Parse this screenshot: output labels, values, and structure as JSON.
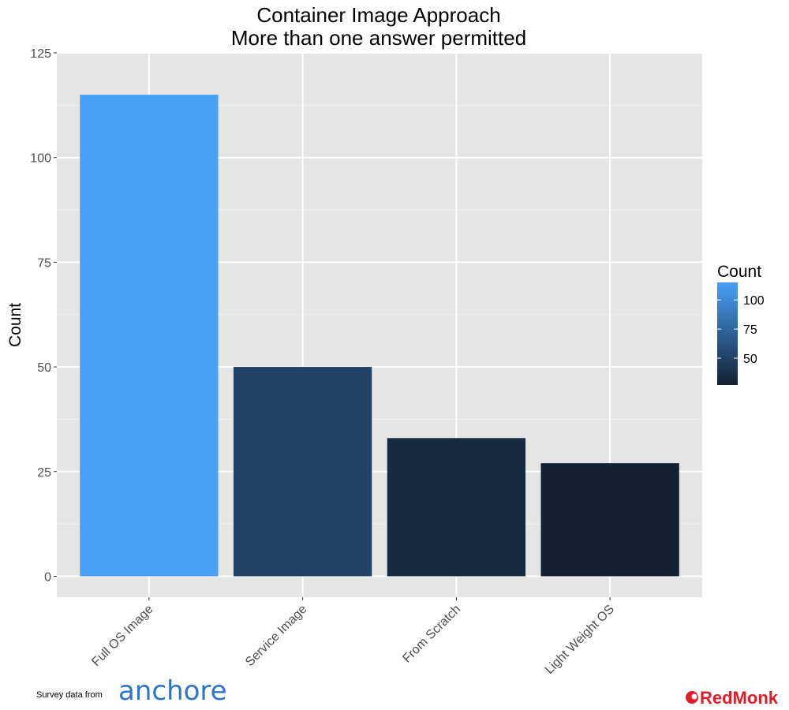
{
  "chart_data": {
    "type": "bar",
    "title": [
      "Container Image Approach",
      "More than one answer permitted"
    ],
    "xlabel": "",
    "ylabel": "Count",
    "categories": [
      "Full OS Image",
      "Service Image",
      "From Scratch",
      "Light Weight OS"
    ],
    "values": [
      115,
      50,
      33,
      27
    ],
    "ylim": [
      -5,
      125
    ],
    "yticks": [
      0,
      25,
      50,
      75,
      100,
      125
    ],
    "grid": true,
    "legend": {
      "title": "Count",
      "placement": "right",
      "type": "color-gradient",
      "ticks": [
        50,
        75,
        100
      ],
      "min": 27,
      "max": 115,
      "color_low": "#132132",
      "color_high": "#489ff8"
    },
    "colors": {
      "panel_background": "#e5e5e5",
      "grid": "#ffffff"
    }
  },
  "footer": {
    "credit_text": "Survey data from",
    "source_logo": "anchore",
    "brand_logo": "RedMonk"
  }
}
